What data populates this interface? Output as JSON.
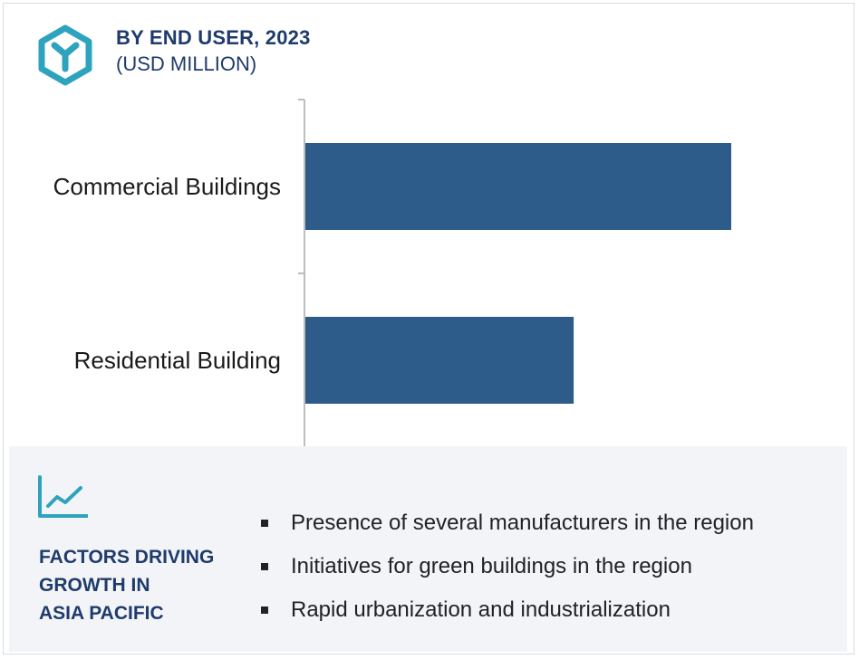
{
  "header": {
    "title": "BY END USER, 2023",
    "subtitle": "(USD MILLION)",
    "logo_icon": "hexagon-y-logo-icon"
  },
  "chart_data": {
    "type": "bar",
    "orientation": "horizontal",
    "categories": [
      "Commercial Buildings",
      "Residential Building"
    ],
    "values": [
      100,
      63
    ],
    "xlim": [
      0,
      100
    ],
    "grid": false,
    "bar_color": "#2d5b8a"
  },
  "factors": {
    "icon": "line-chart-icon",
    "heading": [
      "FACTORS DRIVING",
      "GROWTH IN",
      "ASIA PACIFIC"
    ],
    "items": [
      "Presence of several manufacturers in the region",
      "Initiatives for green buildings in the region",
      "Rapid urbanization and industrialization"
    ]
  },
  "colors": {
    "accent": "#2ea3bd",
    "title": "#1f3b6b",
    "bar": "#2d5b8a",
    "panel": "#f3f4f8"
  }
}
